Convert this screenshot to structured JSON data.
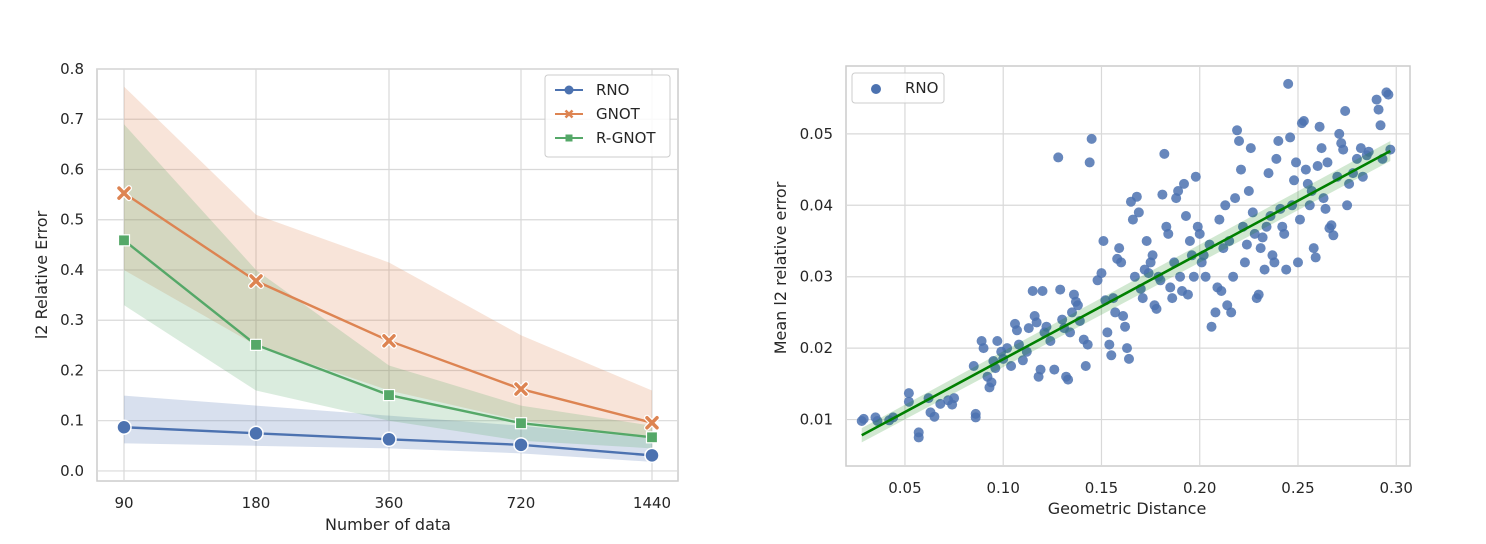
{
  "chart_data": [
    {
      "type": "line",
      "title": "",
      "xlabel": "Number of data",
      "ylabel": "l2 Relative Error",
      "x_tick_labels": [
        "90",
        "180",
        "360",
        "720",
        "1440"
      ],
      "y_tick_labels": [
        "0.0",
        "0.1",
        "0.2",
        "0.3",
        "0.4",
        "0.5",
        "0.6",
        "0.7",
        "0.8"
      ],
      "ylim": [
        -0.02,
        0.8
      ],
      "grid": true,
      "legend": "top-right",
      "series": [
        {
          "name": "RNO",
          "marker": "circle",
          "color": "#4c72b0",
          "values": [
            0.087,
            0.075,
            0.063,
            0.052,
            0.031
          ],
          "lower": [
            0.055,
            0.05,
            0.045,
            0.035,
            0.018
          ],
          "upper": [
            0.15,
            0.13,
            0.11,
            0.09,
            0.065
          ]
        },
        {
          "name": "GNOT",
          "marker": "x",
          "color": "#dd8452",
          "values": [
            0.553,
            0.378,
            0.259,
            0.163,
            0.096
          ],
          "lower": [
            0.4,
            0.25,
            0.16,
            0.1,
            0.065
          ],
          "upper": [
            0.765,
            0.51,
            0.415,
            0.27,
            0.16
          ]
        },
        {
          "name": "R-GNOT",
          "marker": "square",
          "color": "#55a868",
          "values": [
            0.459,
            0.251,
            0.151,
            0.095,
            0.067
          ],
          "lower": [
            0.33,
            0.16,
            0.1,
            0.06,
            0.045
          ],
          "upper": [
            0.69,
            0.4,
            0.21,
            0.13,
            0.09
          ]
        }
      ]
    },
    {
      "type": "scatter",
      "title": "",
      "xlabel": "Geometric Distance",
      "ylabel": "Mean l2 relative error",
      "x_tick_labels": [
        "0.05",
        "0.10",
        "0.15",
        "0.20",
        "0.25",
        "0.30"
      ],
      "y_tick_labels": [
        "0.01",
        "0.02",
        "0.03",
        "0.04",
        "0.05"
      ],
      "xlim": [
        0.02,
        0.307
      ],
      "ylim": [
        0.0035,
        0.0595
      ],
      "grid": true,
      "legend": "top-left",
      "series": [
        {
          "name": "RNO",
          "color": "#4c72b0",
          "points": [
            [
              0.028,
              0.0098
            ],
            [
              0.029,
              0.0101
            ],
            [
              0.035,
              0.0103
            ],
            [
              0.036,
              0.0098
            ],
            [
              0.042,
              0.0099
            ],
            [
              0.044,
              0.0103
            ],
            [
              0.052,
              0.0137
            ],
            [
              0.052,
              0.0125
            ],
            [
              0.057,
              0.0082
            ],
            [
              0.057,
              0.0075
            ],
            [
              0.062,
              0.013
            ],
            [
              0.063,
              0.011
            ],
            [
              0.065,
              0.0104
            ],
            [
              0.068,
              0.0122
            ],
            [
              0.072,
              0.0127
            ],
            [
              0.074,
              0.0121
            ],
            [
              0.075,
              0.013
            ],
            [
              0.085,
              0.0175
            ],
            [
              0.086,
              0.0108
            ],
            [
              0.086,
              0.0103
            ],
            [
              0.089,
              0.021
            ],
            [
              0.09,
              0.02
            ],
            [
              0.092,
              0.016
            ],
            [
              0.093,
              0.0145
            ],
            [
              0.094,
              0.0152
            ],
            [
              0.095,
              0.0182
            ],
            [
              0.096,
              0.0172
            ],
            [
              0.097,
              0.021
            ],
            [
              0.099,
              0.0195
            ],
            [
              0.1,
              0.0185
            ],
            [
              0.102,
              0.02
            ],
            [
              0.104,
              0.0175
            ],
            [
              0.106,
              0.0234
            ],
            [
              0.107,
              0.0225
            ],
            [
              0.108,
              0.0205
            ],
            [
              0.11,
              0.0183
            ],
            [
              0.112,
              0.0195
            ],
            [
              0.113,
              0.0228
            ],
            [
              0.115,
              0.028
            ],
            [
              0.116,
              0.0245
            ],
            [
              0.117,
              0.0236
            ],
            [
              0.118,
              0.016
            ],
            [
              0.119,
              0.017
            ],
            [
              0.12,
              0.028
            ],
            [
              0.121,
              0.0222
            ],
            [
              0.122,
              0.023
            ],
            [
              0.124,
              0.021
            ],
            [
              0.126,
              0.017
            ],
            [
              0.128,
              0.0467
            ],
            [
              0.129,
              0.0282
            ],
            [
              0.13,
              0.024
            ],
            [
              0.131,
              0.0228
            ],
            [
              0.132,
              0.016
            ],
            [
              0.133,
              0.0156
            ],
            [
              0.134,
              0.0222
            ],
            [
              0.135,
              0.025
            ],
            [
              0.136,
              0.0275
            ],
            [
              0.137,
              0.0265
            ],
            [
              0.138,
              0.026
            ],
            [
              0.139,
              0.0238
            ],
            [
              0.141,
              0.0212
            ],
            [
              0.142,
              0.0175
            ],
            [
              0.143,
              0.0205
            ],
            [
              0.144,
              0.046
            ],
            [
              0.145,
              0.0493
            ],
            [
              0.148,
              0.0295
            ],
            [
              0.15,
              0.0305
            ],
            [
              0.151,
              0.035
            ],
            [
              0.152,
              0.0267
            ],
            [
              0.153,
              0.0222
            ],
            [
              0.154,
              0.0205
            ],
            [
              0.155,
              0.019
            ],
            [
              0.156,
              0.027
            ],
            [
              0.157,
              0.025
            ],
            [
              0.158,
              0.0325
            ],
            [
              0.159,
              0.034
            ],
            [
              0.16,
              0.032
            ],
            [
              0.161,
              0.0245
            ],
            [
              0.162,
              0.023
            ],
            [
              0.163,
              0.02
            ],
            [
              0.164,
              0.0185
            ],
            [
              0.165,
              0.0405
            ],
            [
              0.166,
              0.038
            ],
            [
              0.167,
              0.03
            ],
            [
              0.168,
              0.0412
            ],
            [
              0.169,
              0.039
            ],
            [
              0.17,
              0.0283
            ],
            [
              0.171,
              0.027
            ],
            [
              0.172,
              0.031
            ],
            [
              0.173,
              0.035
            ],
            [
              0.174,
              0.0305
            ],
            [
              0.175,
              0.032
            ],
            [
              0.176,
              0.033
            ],
            [
              0.177,
              0.026
            ],
            [
              0.178,
              0.0255
            ],
            [
              0.179,
              0.03
            ],
            [
              0.18,
              0.0295
            ],
            [
              0.181,
              0.0415
            ],
            [
              0.182,
              0.0472
            ],
            [
              0.183,
              0.037
            ],
            [
              0.184,
              0.036
            ],
            [
              0.185,
              0.0285
            ],
            [
              0.186,
              0.027
            ],
            [
              0.187,
              0.032
            ],
            [
              0.188,
              0.041
            ],
            [
              0.189,
              0.042
            ],
            [
              0.19,
              0.03
            ],
            [
              0.191,
              0.028
            ],
            [
              0.192,
              0.043
            ],
            [
              0.193,
              0.0385
            ],
            [
              0.194,
              0.0275
            ],
            [
              0.195,
              0.035
            ],
            [
              0.196,
              0.033
            ],
            [
              0.197,
              0.03
            ],
            [
              0.198,
              0.044
            ],
            [
              0.199,
              0.037
            ],
            [
              0.2,
              0.036
            ],
            [
              0.201,
              0.032
            ],
            [
              0.202,
              0.033
            ],
            [
              0.203,
              0.03
            ],
            [
              0.205,
              0.0345
            ],
            [
              0.206,
              0.023
            ],
            [
              0.208,
              0.025
            ],
            [
              0.209,
              0.0285
            ],
            [
              0.21,
              0.038
            ],
            [
              0.211,
              0.028
            ],
            [
              0.212,
              0.034
            ],
            [
              0.213,
              0.04
            ],
            [
              0.214,
              0.026
            ],
            [
              0.215,
              0.035
            ],
            [
              0.216,
              0.025
            ],
            [
              0.217,
              0.03
            ],
            [
              0.218,
              0.041
            ],
            [
              0.219,
              0.0505
            ],
            [
              0.22,
              0.049
            ],
            [
              0.221,
              0.045
            ],
            [
              0.222,
              0.037
            ],
            [
              0.223,
              0.032
            ],
            [
              0.224,
              0.0345
            ],
            [
              0.225,
              0.042
            ],
            [
              0.226,
              0.048
            ],
            [
              0.227,
              0.039
            ],
            [
              0.228,
              0.036
            ],
            [
              0.229,
              0.027
            ],
            [
              0.23,
              0.0275
            ],
            [
              0.231,
              0.034
            ],
            [
              0.232,
              0.0355
            ],
            [
              0.233,
              0.031
            ],
            [
              0.234,
              0.037
            ],
            [
              0.235,
              0.0445
            ],
            [
              0.236,
              0.0385
            ],
            [
              0.237,
              0.033
            ],
            [
              0.238,
              0.032
            ],
            [
              0.239,
              0.0465
            ],
            [
              0.24,
              0.049
            ],
            [
              0.241,
              0.0395
            ],
            [
              0.242,
              0.037
            ],
            [
              0.243,
              0.036
            ],
            [
              0.244,
              0.031
            ],
            [
              0.245,
              0.057
            ],
            [
              0.246,
              0.0495
            ],
            [
              0.247,
              0.04
            ],
            [
              0.248,
              0.0435
            ],
            [
              0.249,
              0.046
            ],
            [
              0.25,
              0.032
            ],
            [
              0.251,
              0.038
            ],
            [
              0.252,
              0.0515
            ],
            [
              0.253,
              0.0518
            ],
            [
              0.254,
              0.045
            ],
            [
              0.255,
              0.043
            ],
            [
              0.256,
              0.04
            ],
            [
              0.257,
              0.042
            ],
            [
              0.258,
              0.034
            ],
            [
              0.259,
              0.0327
            ],
            [
              0.26,
              0.0455
            ],
            [
              0.261,
              0.051
            ],
            [
              0.262,
              0.048
            ],
            [
              0.263,
              0.041
            ],
            [
              0.264,
              0.0395
            ],
            [
              0.265,
              0.046
            ],
            [
              0.266,
              0.0368
            ],
            [
              0.267,
              0.0372
            ],
            [
              0.268,
              0.0358
            ],
            [
              0.27,
              0.044
            ],
            [
              0.271,
              0.05
            ],
            [
              0.272,
              0.0487
            ],
            [
              0.273,
              0.0478
            ],
            [
              0.274,
              0.0532
            ],
            [
              0.275,
              0.04
            ],
            [
              0.276,
              0.043
            ],
            [
              0.278,
              0.0445
            ],
            [
              0.28,
              0.0465
            ],
            [
              0.282,
              0.048
            ],
            [
              0.283,
              0.044
            ],
            [
              0.285,
              0.047
            ],
            [
              0.286,
              0.0475
            ],
            [
              0.29,
              0.0548
            ],
            [
              0.291,
              0.0534
            ],
            [
              0.292,
              0.0512
            ],
            [
              0.293,
              0.0465
            ],
            [
              0.295,
              0.0558
            ],
            [
              0.296,
              0.0555
            ],
            [
              0.297,
              0.0478
            ]
          ]
        }
      ],
      "fit_line": {
        "color": "#008000",
        "x": [
          0.028,
          0.297
        ],
        "y": [
          0.0078,
          0.0476
        ],
        "ci_lower": [
          0.0068,
          0.0462
        ],
        "ci_upper": [
          0.0088,
          0.049
        ]
      }
    }
  ]
}
